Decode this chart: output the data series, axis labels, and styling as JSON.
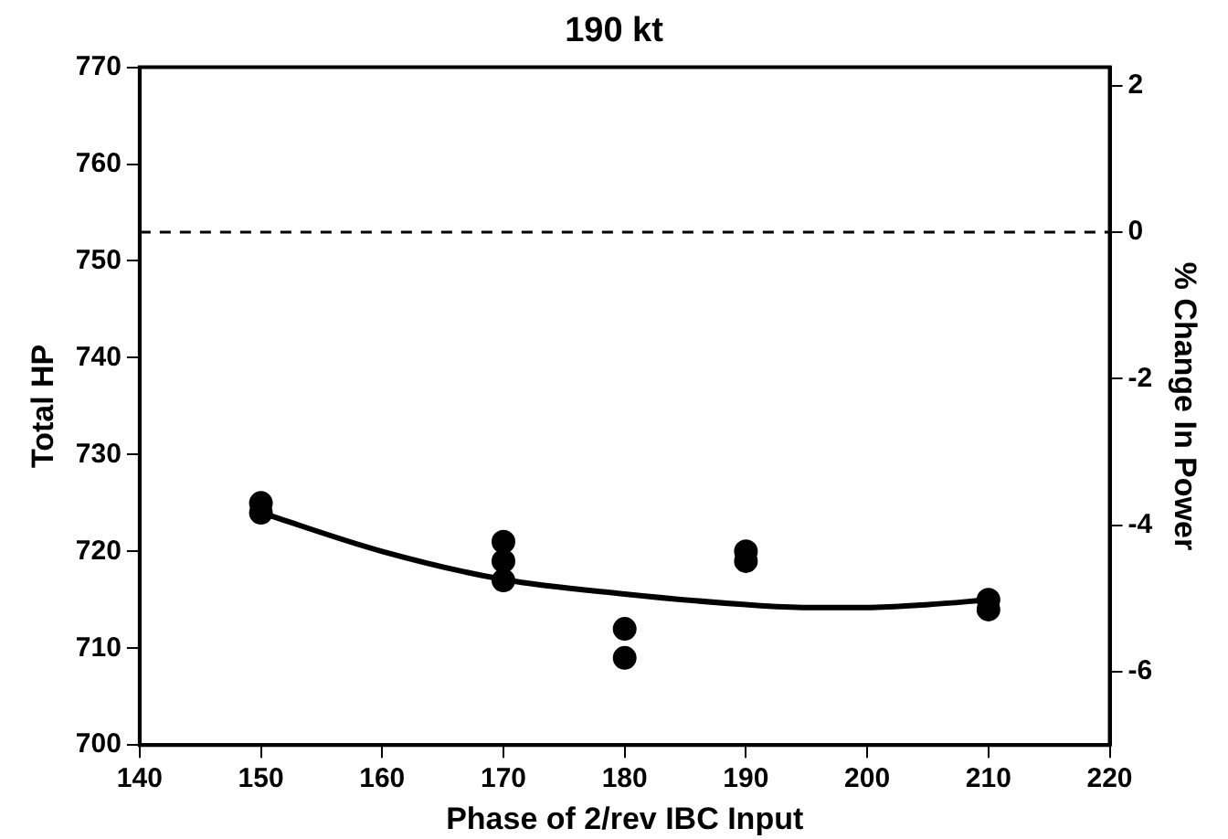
{
  "chart_data": {
    "type": "scatter",
    "title": "190 kt",
    "xlabel": "Phase of 2/rev IBC Input",
    "ylabel": "Total HP",
    "y2label": "% Change In Power",
    "xlim": [
      140,
      220
    ],
    "xticks": [
      140,
      150,
      160,
      170,
      180,
      190,
      200,
      210,
      220
    ],
    "ylim": [
      700,
      770
    ],
    "yticks": [
      700,
      710,
      720,
      730,
      740,
      750,
      760,
      770
    ],
    "y2lim": [
      -7.0,
      2.25
    ],
    "y2ticks": [
      -6,
      -4,
      -2,
      0,
      2
    ],
    "grid": false,
    "legend": false,
    "marker": "circle",
    "series": [
      {
        "type": "scatter",
        "color": "#000000",
        "x": [
          150,
          150,
          170,
          170,
          170,
          180,
          180,
          190,
          190,
          210,
          210
        ],
        "values": [
          725,
          724,
          721,
          719,
          717,
          712,
          709,
          720,
          719,
          715,
          714
        ]
      },
      {
        "type": "line",
        "color": "#000000",
        "line_style": "solid",
        "marker": "none",
        "x": [
          150,
          160,
          170,
          180,
          190,
          195,
          200,
          205,
          210
        ],
        "values": [
          724,
          720,
          717.1,
          715.6,
          714.5,
          714.2,
          714.2,
          714.5,
          715
        ]
      }
    ],
    "ref_lines": [
      {
        "axis": "y2",
        "value": 0,
        "color": "#000000",
        "line_style": "dashed"
      }
    ]
  }
}
